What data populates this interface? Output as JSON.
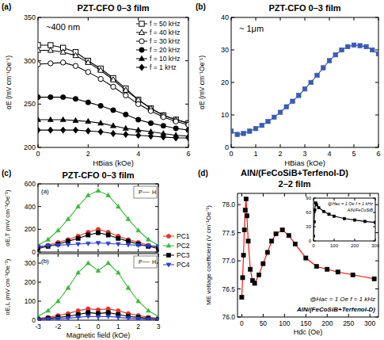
{
  "chart_data": [
    {
      "type": "line",
      "title": "PZT-CFO 0–3 film",
      "annotations": [
        "(a)",
        "~400 nm"
      ],
      "x_label": "HBias (kOe)",
      "y_label": "αE (mV cm⁻¹Oe⁻¹)",
      "xlim": [
        0,
        6
      ],
      "ylim": [
        200,
        350
      ],
      "xticks": [
        0,
        2,
        4,
        6
      ],
      "yticks": [
        200,
        250,
        300,
        350
      ],
      "legend": "upper right",
      "x": [
        0,
        0.5,
        1,
        1.5,
        2,
        2.5,
        3,
        3.5,
        4,
        4.5,
        5,
        5.5,
        6
      ],
      "series": [
        {
          "name": "f = 50 kHz",
          "color": "#000000",
          "marker": "square-open",
          "line_style": "solid",
          "values": [
            318,
            318,
            315,
            310,
            300,
            291,
            280,
            268,
            255,
            245,
            237,
            232,
            228
          ]
        },
        {
          "name": "f = 40 kHz",
          "color": "#000000",
          "marker": "triangle-open",
          "line_style": "solid",
          "values": [
            312,
            312,
            310,
            306,
            298,
            289,
            278,
            266,
            255,
            245,
            237,
            232,
            228
          ]
        },
        {
          "name": "f = 30 kHz",
          "color": "#000000",
          "marker": "circle-open",
          "line_style": "solid",
          "values": [
            296,
            297,
            298,
            294,
            287,
            279,
            270,
            260,
            250,
            242,
            235,
            230,
            226
          ]
        },
        {
          "name": "f = 20 kHz",
          "color": "#000000",
          "marker": "circle",
          "line_style": "solid",
          "values": [
            258,
            258,
            258,
            256,
            252,
            248,
            243,
            238,
            232,
            228,
            225,
            222,
            220
          ]
        },
        {
          "name": "f = 10 kHz",
          "color": "#000000",
          "marker": "triangle",
          "line_style": "solid",
          "values": [
            232,
            232,
            232,
            231,
            230,
            228,
            225,
            222,
            220,
            218,
            216,
            214,
            213
          ]
        },
        {
          "name": "f = 1 kHz",
          "color": "#000000",
          "marker": "diamond",
          "line_style": "solid",
          "values": [
            220,
            220,
            220,
            220,
            219,
            218,
            216,
            215,
            214,
            213,
            212,
            211,
            211
          ]
        }
      ]
    },
    {
      "type": "line",
      "title": "PZT-CFO 0–3 film",
      "annotations": [
        "(b)",
        "~ 1μm"
      ],
      "x_label": "HBias (kOe)",
      "y_label": "αE (mV cm⁻¹Oe⁻¹)",
      "xlim": [
        0,
        6
      ],
      "ylim": [
        0,
        40
      ],
      "xticks": [
        0,
        1,
        2,
        3,
        4,
        5,
        6
      ],
      "yticks": [
        0,
        10,
        20,
        30,
        40
      ],
      "x": [
        0,
        0.25,
        0.5,
        0.75,
        1,
        1.25,
        1.5,
        1.75,
        2,
        2.25,
        2.5,
        2.75,
        3,
        3.25,
        3.5,
        3.75,
        4,
        4.25,
        4.5,
        4.75,
        5,
        5.25,
        5.5,
        5.75,
        6
      ],
      "series": [
        {
          "color": "#3b5bb5",
          "marker": "square",
          "line_style": "solid",
          "values": [
            5,
            4,
            4.3,
            5,
            5.8,
            6.8,
            8,
            9.3,
            10.8,
            12.5,
            14.2,
            16,
            18,
            20,
            22.2,
            24.5,
            26.7,
            28.5,
            30,
            31,
            31.5,
            31.3,
            31,
            30,
            28.8
          ]
        }
      ]
    },
    {
      "type": "line",
      "title": "PZT-CFO 0–3 film",
      "annotations": [
        "(c)",
        "(a)",
        "P",
        "H"
      ],
      "y_label": "αE,T (mV cm⁻¹Oe⁻¹)",
      "xlim": [
        -3,
        3
      ],
      "ylim": [
        0,
        600
      ],
      "xticks": [
        -3,
        -2,
        -1,
        0,
        1,
        2,
        3
      ],
      "yticks": [
        0,
        200,
        400,
        600
      ],
      "tick_labels": "y",
      "legend": "right",
      "x": [
        -3,
        -2.5,
        -2,
        -1.5,
        -1,
        -0.5,
        0,
        0.5,
        1,
        1.5,
        2,
        2.5,
        3
      ],
      "series": [
        {
          "name": "PC1",
          "color": "#e8302a",
          "marker": "circle",
          "line_style": "solid",
          "values": [
            40,
            60,
            85,
            110,
            140,
            175,
            200,
            175,
            140,
            110,
            85,
            60,
            40
          ]
        },
        {
          "name": "PC2",
          "color": "#3cb83c",
          "marker": "triangle",
          "line_style": "solid",
          "values": [
            60,
            110,
            190,
            290,
            400,
            500,
            540,
            500,
            400,
            290,
            190,
            110,
            60
          ]
        },
        {
          "name": "PC3",
          "color": "#000000",
          "marker": "square",
          "line_style": "solid",
          "values": [
            30,
            50,
            70,
            95,
            120,
            150,
            170,
            150,
            120,
            95,
            70,
            50,
            30
          ]
        },
        {
          "name": "PC4",
          "color": "#2a3fd4",
          "marker": "triangle-down",
          "line_style": "solid",
          "values": [
            50,
            55,
            60,
            65,
            70,
            75,
            80,
            75,
            70,
            65,
            60,
            55,
            50
          ]
        }
      ]
    },
    {
      "type": "line",
      "annotations": [
        "(b)",
        "P",
        "H"
      ],
      "x_label": "Magnetic field (kOe)",
      "y_label": "αE,L (mV cm⁻¹Oe⁻¹)",
      "xlim": [
        -3,
        3
      ],
      "ylim": [
        0,
        350
      ],
      "xticks": [
        -3,
        -2,
        -1,
        0,
        1,
        2,
        3
      ],
      "yticks": [
        0,
        100,
        200,
        300
      ],
      "x": [
        -3,
        -2.5,
        -2,
        -1.5,
        -1,
        -0.5,
        0,
        0.5,
        1,
        1.5,
        2,
        2.5,
        3
      ],
      "series": [
        {
          "color": "#e8302a",
          "marker": "circle",
          "line_style": "solid",
          "values": [
            10,
            15,
            25,
            35,
            50,
            60,
            55,
            60,
            50,
            35,
            25,
            15,
            10
          ]
        },
        {
          "color": "#3cb83c",
          "marker": "triangle",
          "line_style": "solid",
          "values": [
            20,
            50,
            100,
            170,
            250,
            300,
            260,
            300,
            250,
            170,
            100,
            50,
            20
          ]
        },
        {
          "color": "#000000",
          "marker": "square",
          "line_style": "solid",
          "values": [
            5,
            10,
            15,
            20,
            30,
            40,
            35,
            40,
            30,
            20,
            15,
            10,
            5
          ]
        },
        {
          "color": "#2a3fd4",
          "marker": "triangle-down",
          "line_style": "solid",
          "values": [
            3,
            5,
            8,
            10,
            15,
            20,
            18,
            20,
            15,
            10,
            8,
            5,
            3
          ]
        }
      ]
    },
    {
      "type": "line",
      "title": "AlN/(FeCoSiB+Terfenol-D)",
      "subtitle": "2–2 film",
      "annotations": [
        "(d)",
        "@Hac = 1 Oe  f = 1 kHz",
        "AlN/(FeCoSiB+Terfenol-D)"
      ],
      "x_label": "Hdc (Oe)",
      "y_label": "ME voltage coefficient (V cm⁻¹Oe⁻¹)",
      "xlim": [
        -10,
        320
      ],
      "ylim": [
        76,
        78.2
      ],
      "xticks": [
        0,
        50,
        100,
        150,
        200,
        250,
        300
      ],
      "yticks": [
        {
          "value": 76,
          "label": "76.0"
        },
        76.5,
        {
          "value": 77,
          "label": "77.0"
        },
        77.5,
        {
          "value": 78,
          "label": "78.0"
        }
      ],
      "x": [
        0,
        2,
        4,
        6,
        8,
        10,
        12,
        15,
        20,
        25,
        30,
        40,
        50,
        60,
        70,
        80,
        95,
        110,
        125,
        150,
        175,
        200,
        225,
        260,
        310
      ],
      "series": [
        {
          "color": "#ff0000",
          "marker": "square",
          "line_style": "solid",
          "values": [
            76.35,
            76.7,
            77.1,
            77.55,
            77.9,
            78.1,
            77.8,
            77.35,
            76.85,
            76.65,
            76.6,
            76.75,
            76.95,
            77.15,
            77.35,
            77.48,
            77.55,
            77.45,
            77.3,
            77.05,
            76.9,
            76.85,
            76.8,
            76.75,
            76.68
          ]
        }
      ]
    },
    {
      "type": "line",
      "annotations": [
        "@Hac = 1 Oe  f = 1 kHz",
        "AlN/FeCoSiB"
      ],
      "xlim": [
        0,
        300
      ],
      "ylim": [
        0,
        90
      ],
      "xticks": [
        0,
        100,
        200,
        300
      ],
      "yticks": [
        0,
        30,
        60,
        90
      ],
      "x": [
        0,
        3,
        6,
        10,
        15,
        25,
        50,
        75,
        100,
        150,
        200,
        250,
        300
      ],
      "series": [
        {
          "color": "#000000",
          "marker": "square",
          "line_style": "solid",
          "values": [
            10,
            40,
            65,
            80,
            76,
            70,
            62,
            56,
            52,
            47,
            44,
            41,
            39
          ]
        }
      ]
    }
  ]
}
